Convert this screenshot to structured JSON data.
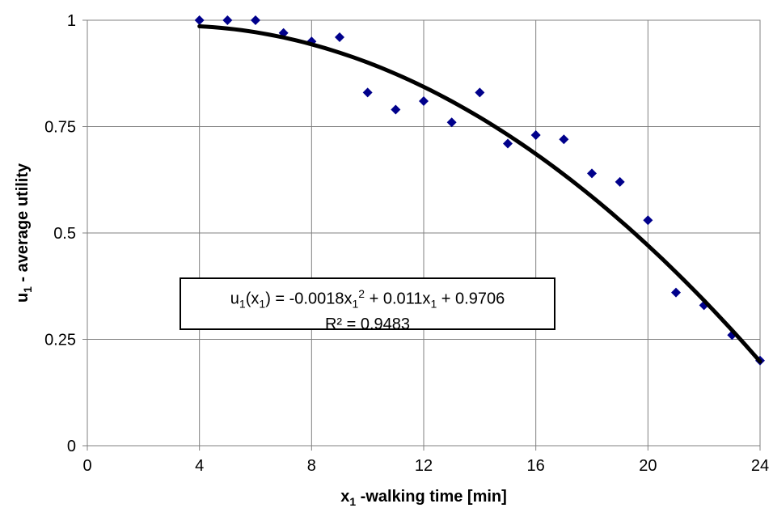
{
  "chart_data": {
    "type": "scatter",
    "xlabel": {
      "main": "x",
      "sub": "1",
      "rest": " -walking time [min]"
    },
    "ylabel": {
      "main": "u",
      "sub": "1",
      "rest": " - average utility"
    },
    "xlim": [
      0,
      24
    ],
    "ylim": [
      0,
      1
    ],
    "xticks": [
      0,
      4,
      8,
      12,
      16,
      20,
      24
    ],
    "yticks": [
      0,
      0.25,
      0.5,
      0.75,
      1
    ],
    "ytick_labels": [
      "0",
      "0.25",
      "0.5",
      "0.75",
      "1"
    ],
    "grid": true,
    "marker_color": "#00008B",
    "trend_color": "#000000",
    "points": [
      {
        "x": 4,
        "y": 1.0
      },
      {
        "x": 5,
        "y": 1.0
      },
      {
        "x": 6,
        "y": 1.0
      },
      {
        "x": 7,
        "y": 0.97
      },
      {
        "x": 8,
        "y": 0.95
      },
      {
        "x": 9,
        "y": 0.96
      },
      {
        "x": 10,
        "y": 0.83
      },
      {
        "x": 11,
        "y": 0.79
      },
      {
        "x": 12,
        "y": 0.81
      },
      {
        "x": 13,
        "y": 0.76
      },
      {
        "x": 14,
        "y": 0.83
      },
      {
        "x": 15,
        "y": 0.71
      },
      {
        "x": 16,
        "y": 0.73
      },
      {
        "x": 17,
        "y": 0.72
      },
      {
        "x": 18,
        "y": 0.64
      },
      {
        "x": 19,
        "y": 0.62
      },
      {
        "x": 20,
        "y": 0.53
      },
      {
        "x": 21,
        "y": 0.36
      },
      {
        "x": 22,
        "y": 0.33
      },
      {
        "x": 23,
        "y": 0.26
      },
      {
        "x": 24,
        "y": 0.2
      }
    ],
    "trendline": {
      "type": "polynomial",
      "coefficients": [
        -0.0018,
        0.011,
        0.9706
      ],
      "x_range": [
        4,
        24
      ]
    },
    "annotation": {
      "line1": {
        "a": "u",
        "b": "1",
        "c": "(x",
        "d": "1",
        "e": ") = -0.0018x",
        "f": "1",
        "g": "2",
        "h": " + 0.011x",
        "i": "1",
        "j": " + 0.9706"
      },
      "line2": "R² = 0.9483"
    }
  }
}
